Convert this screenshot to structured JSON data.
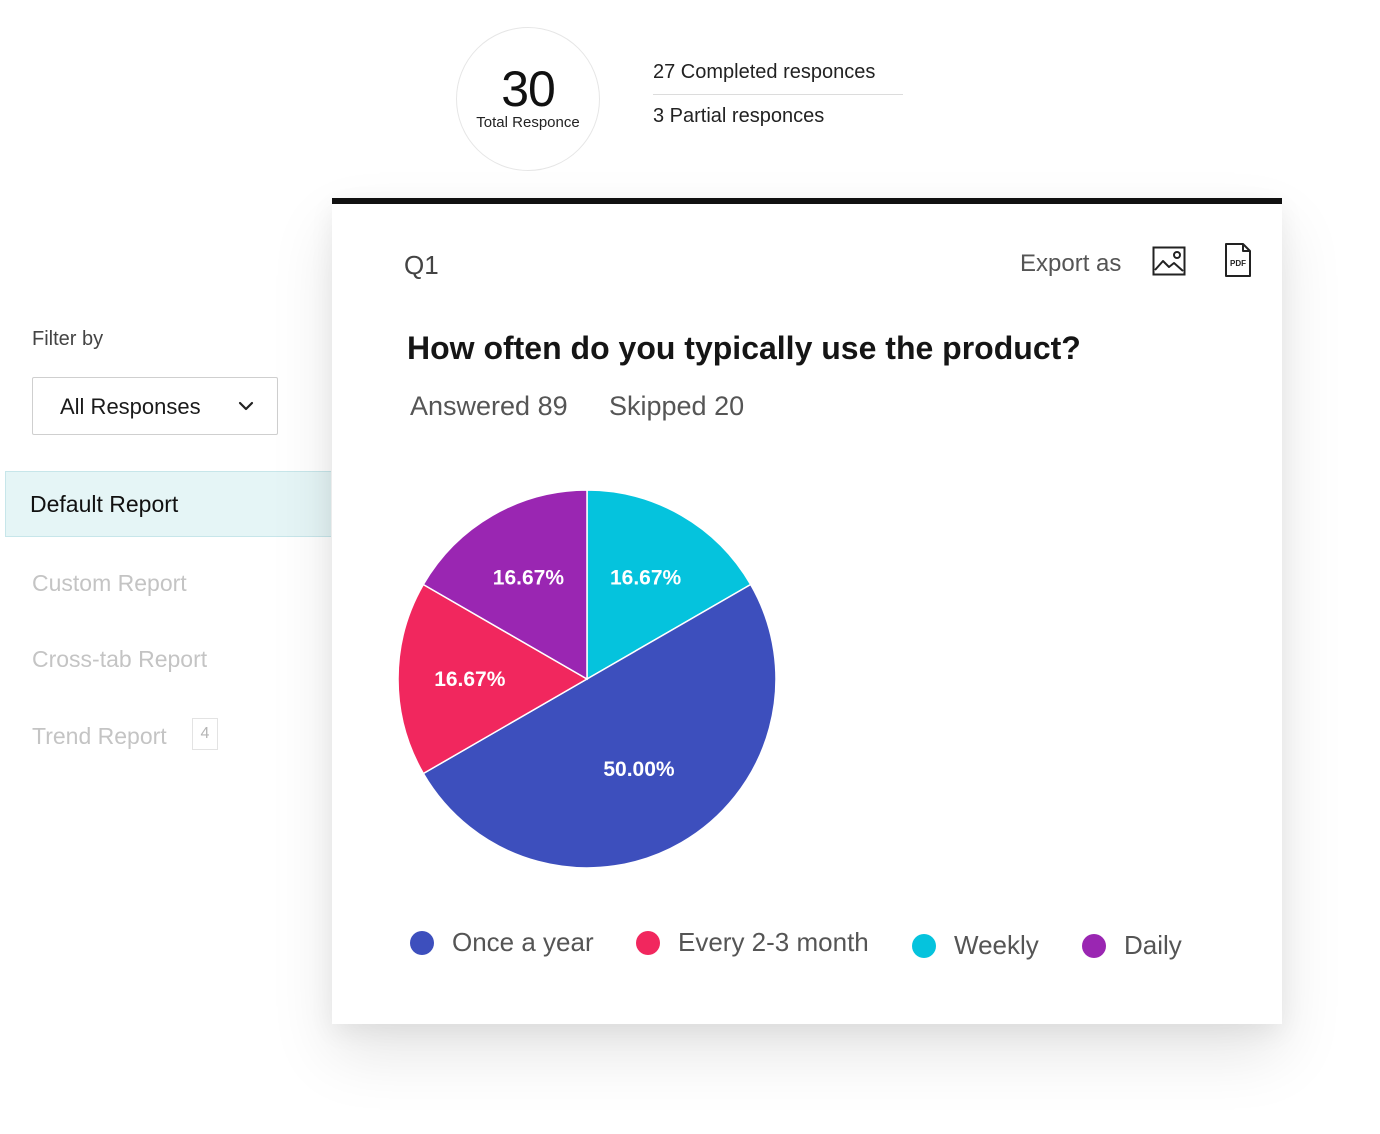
{
  "summary": {
    "total_number": "30",
    "total_label": "Total Responce",
    "completed": "27 Completed responces",
    "partial": "3 Partial responces"
  },
  "sidebar": {
    "filter_label": "Filter by",
    "filter_value": "All Responses",
    "items": [
      {
        "label": "Default Report",
        "active": true
      },
      {
        "label": "Custom Report",
        "active": false
      },
      {
        "label": "Cross-tab Report",
        "active": false
      },
      {
        "label": "Trend Report",
        "active": false,
        "badge": "4"
      }
    ]
  },
  "card": {
    "question_number": "Q1",
    "export_label": "Export as",
    "export_image_icon": "image-icon",
    "export_pdf_icon": "pdf-file-icon",
    "pdf_icon_text": "PDF",
    "question": "How often do you typically use the product?",
    "answered": "Answered 89",
    "skipped": "Skipped 20"
  },
  "colors": {
    "accent_active_bg": "#e5f5f6",
    "once_a_year": "#3d4fbd",
    "every_2_3_month": "#f1275e",
    "weekly": "#05c3dd",
    "daily": "#9a26b2"
  },
  "chart_data": {
    "type": "pie",
    "title": "How often do you typically use the product?",
    "categories": [
      "Once a year",
      "Every 2-3 month",
      "Weekly",
      "Daily"
    ],
    "values": [
      50.0,
      16.67,
      16.67,
      16.67
    ],
    "labels": [
      "50.00%",
      "16.67%",
      "16.67%",
      "16.67%"
    ],
    "colors": [
      "#3d4fbd",
      "#f1275e",
      "#05c3dd",
      "#9a26b2"
    ],
    "legend_position": "bottom"
  }
}
